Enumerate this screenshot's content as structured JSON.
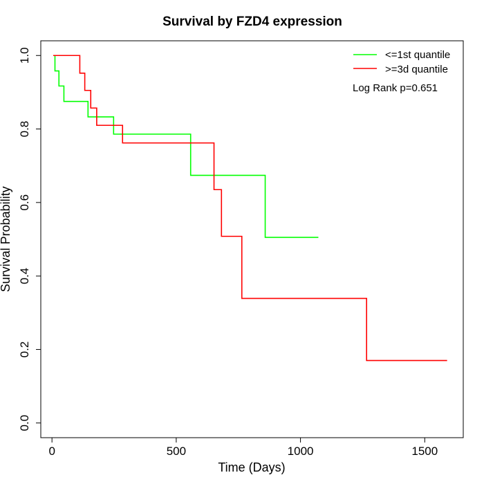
{
  "chart_data": {
    "type": "line",
    "title": "Survival by FZD4 expression",
    "xlabel": "Time (Days)",
    "ylabel": "Survival Probability",
    "xlim": [
      -45,
      1655
    ],
    "ylim": [
      -0.04,
      1.04
    ],
    "x_ticks": [
      0,
      500,
      1000,
      1500
    ],
    "x_tick_labels": [
      "0",
      "500",
      "1000",
      "1500"
    ],
    "y_ticks": [
      0.0,
      0.2,
      0.4,
      0.6,
      0.8,
      1.0
    ],
    "y_tick_labels": [
      "0.0",
      "0.2",
      "0.4",
      "0.6",
      "0.8",
      "1.0"
    ],
    "grid": false,
    "legend_position": "top-right",
    "annotation": "Log Rank p=0.651",
    "series": [
      {
        "name": "<=1st quantile",
        "color": "#00ff00",
        "step": true,
        "points": [
          [
            5,
            1.0
          ],
          [
            12,
            0.958
          ],
          [
            28,
            0.917
          ],
          [
            48,
            0.875
          ],
          [
            145,
            0.833
          ],
          [
            248,
            0.786
          ],
          [
            558,
            0.674
          ],
          [
            858,
            0.505
          ],
          [
            1072,
            0.505
          ]
        ]
      },
      {
        "name": ">=3d quantile",
        "color": "#ff0000",
        "step": true,
        "points": [
          [
            5,
            1.0
          ],
          [
            112,
            0.952
          ],
          [
            132,
            0.905
          ],
          [
            156,
            0.857
          ],
          [
            180,
            0.81
          ],
          [
            284,
            0.762
          ],
          [
            652,
            0.635
          ],
          [
            682,
            0.508
          ],
          [
            764,
            0.339
          ],
          [
            1266,
            0.17
          ],
          [
            1590,
            0.17
          ]
        ]
      }
    ]
  }
}
